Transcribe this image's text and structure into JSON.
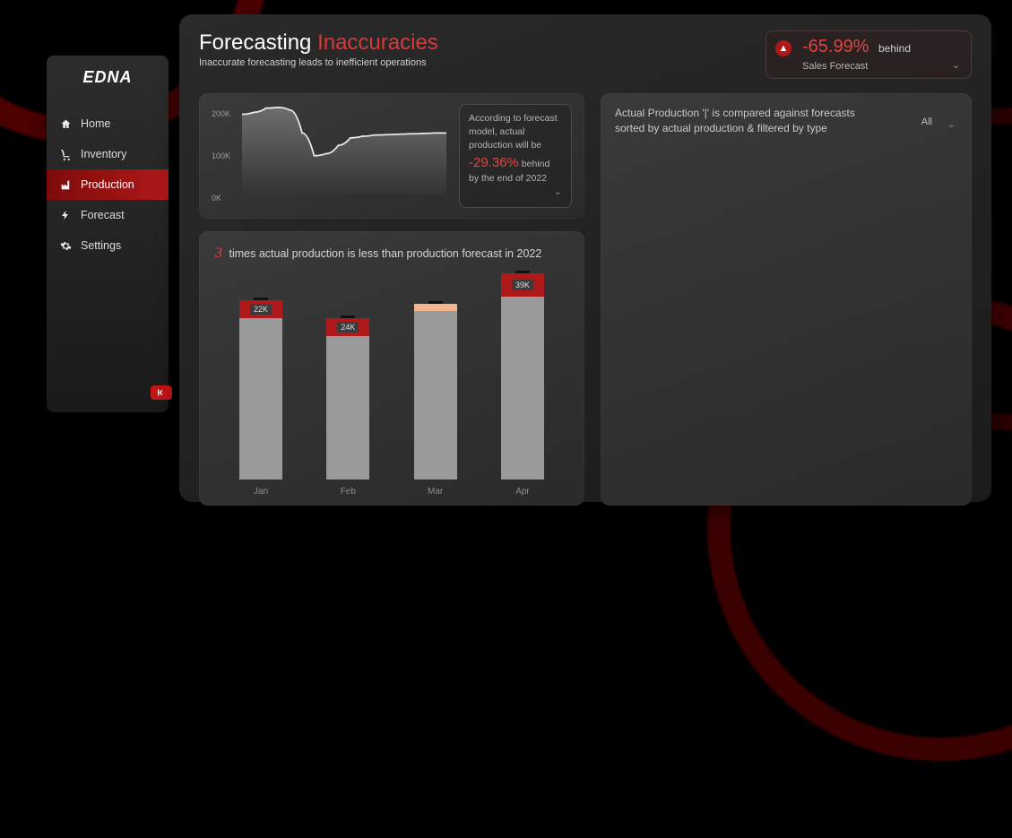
{
  "app": {
    "brand": "EDNA"
  },
  "sidebar": {
    "items": [
      {
        "label": "Home",
        "icon": "home-icon"
      },
      {
        "label": "Inventory",
        "icon": "cart-icon"
      },
      {
        "label": "Production",
        "icon": "factory-icon",
        "active": true
      },
      {
        "label": "Forecast",
        "icon": "bolt-icon"
      },
      {
        "label": "Settings",
        "icon": "gear-icon"
      }
    ]
  },
  "header": {
    "title_a": "Forecasting ",
    "title_b": "Inaccuracies",
    "subtitle": "Inaccurate forecasting leads to inefficient operations"
  },
  "kpi": {
    "value": "-65.99%",
    "label": "behind",
    "dropdown_label": "Sales Forecast"
  },
  "forecast_line": {
    "type": "area-line",
    "y_ticks": [
      "200K",
      "100K",
      "0K"
    ],
    "ylim": [
      0,
      220
    ],
    "points_k": [
      195,
      200,
      210,
      212,
      205,
      150,
      95,
      100,
      120,
      138,
      142,
      145,
      146,
      147,
      148,
      149,
      150,
      150
    ],
    "line_color": "#e6e6e6",
    "fill_top": "#6e6e6e",
    "fill_bottom": "#3b3b3b",
    "background": "#343434"
  },
  "forecast_note": {
    "line1": "According to forecast model, actual production will be ",
    "pct": "-29.36%",
    "line2": " behind by  the end of ",
    "year": "2022"
  },
  "right_panel": {
    "text_a": "Actual Production '|' is compared against forecasts",
    "text_b": "sorted by actual production & filtered by type",
    "filter_value": "All"
  },
  "bars": {
    "type": "stacked-bar",
    "count": "3",
    "title_rest": " times actual production is less than production forecast in ",
    "year": "2022",
    "categories": [
      "Jan",
      "Feb",
      "Mar",
      "Apr"
    ],
    "bars": [
      {
        "base_h": 180,
        "cap_h": 20,
        "tag": "22K",
        "peach_h": 0
      },
      {
        "base_h": 160,
        "cap_h": 20,
        "tag": "24K",
        "peach_h": 0
      },
      {
        "base_h": 188,
        "cap_h": 0,
        "tag": "",
        "peach_h": 8
      },
      {
        "base_h": 204,
        "cap_h": 26,
        "tag": "39K",
        "peach_h": 0
      }
    ],
    "base_color": "#9a9a9a",
    "cap_color": "#b01919",
    "peach_color": "#f2b58c",
    "thin_color": "#111111"
  },
  "colors": {
    "accent": "#d63a3a",
    "negative": "#e24343",
    "card_bg": "#2f2f2f",
    "text_muted": "#b5b5b5"
  }
}
